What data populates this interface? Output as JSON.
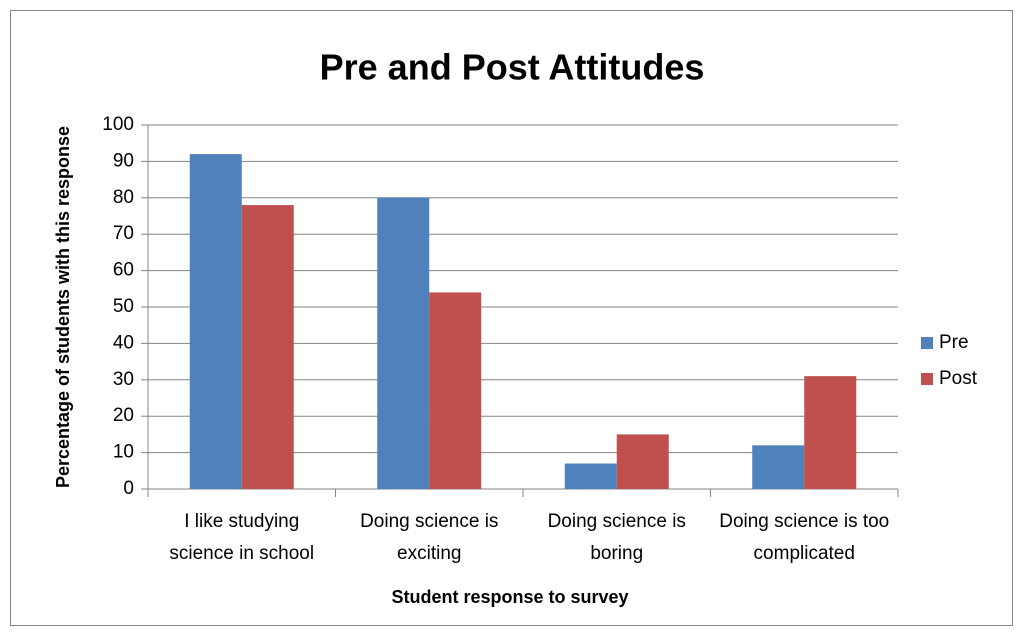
{
  "chart_data": {
    "type": "bar",
    "title": "Pre and Post Attitudes",
    "x_label": "Student response to survey",
    "y_label": "Percentage of students with this response",
    "categories": [
      "I like studying science in school",
      "Doing science is exciting",
      "Doing science is boring",
      "Doing science is too complicated"
    ],
    "series": [
      {
        "name": "Pre",
        "color": "#4f81bd",
        "values": [
          92,
          80,
          7,
          12
        ]
      },
      {
        "name": "Post",
        "color": "#c0504d",
        "values": [
          78,
          54,
          15,
          31
        ]
      }
    ],
    "ylim": [
      0,
      100
    ],
    "yticks": [
      0,
      10,
      20,
      30,
      40,
      50,
      60,
      70,
      80,
      90,
      100
    ],
    "grid": true,
    "legend": "right"
  }
}
